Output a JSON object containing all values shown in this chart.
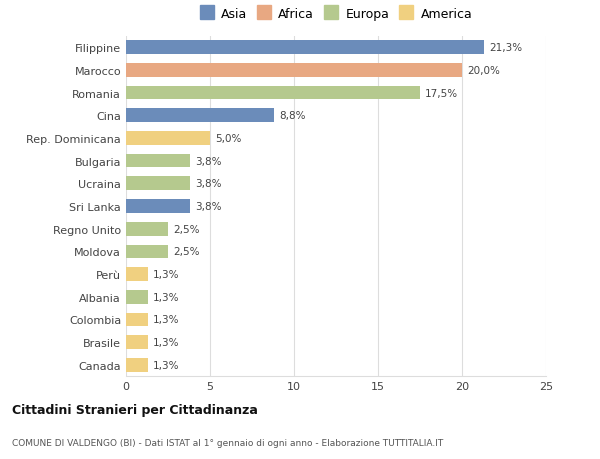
{
  "categories": [
    "Filippine",
    "Marocco",
    "Romania",
    "Cina",
    "Rep. Dominicana",
    "Bulgaria",
    "Ucraina",
    "Sri Lanka",
    "Regno Unito",
    "Moldova",
    "Perù",
    "Albania",
    "Colombia",
    "Brasile",
    "Canada"
  ],
  "values": [
    21.3,
    20.0,
    17.5,
    8.8,
    5.0,
    3.8,
    3.8,
    3.8,
    2.5,
    2.5,
    1.3,
    1.3,
    1.3,
    1.3,
    1.3
  ],
  "labels": [
    "21,3%",
    "20,0%",
    "17,5%",
    "8,8%",
    "5,0%",
    "3,8%",
    "3,8%",
    "3,8%",
    "2,5%",
    "2,5%",
    "1,3%",
    "1,3%",
    "1,3%",
    "1,3%",
    "1,3%"
  ],
  "continents": [
    "Asia",
    "Africa",
    "Europa",
    "Asia",
    "America",
    "Europa",
    "Europa",
    "Asia",
    "Europa",
    "Europa",
    "America",
    "Europa",
    "America",
    "America",
    "America"
  ],
  "colors": {
    "Asia": "#6b8cba",
    "Africa": "#e8a882",
    "Europa": "#b5c98e",
    "America": "#f0d080"
  },
  "legend_order": [
    "Asia",
    "Africa",
    "Europa",
    "America"
  ],
  "title": "Cittadini Stranieri per Cittadinanza",
  "subtitle": "COMUNE DI VALDENGO (BI) - Dati ISTAT al 1° gennaio di ogni anno - Elaborazione TUTTITALIA.IT",
  "xlim": [
    0,
    25
  ],
  "xticks": [
    0,
    5,
    10,
    15,
    20,
    25
  ],
  "background_color": "#ffffff",
  "grid_color": "#dddddd"
}
